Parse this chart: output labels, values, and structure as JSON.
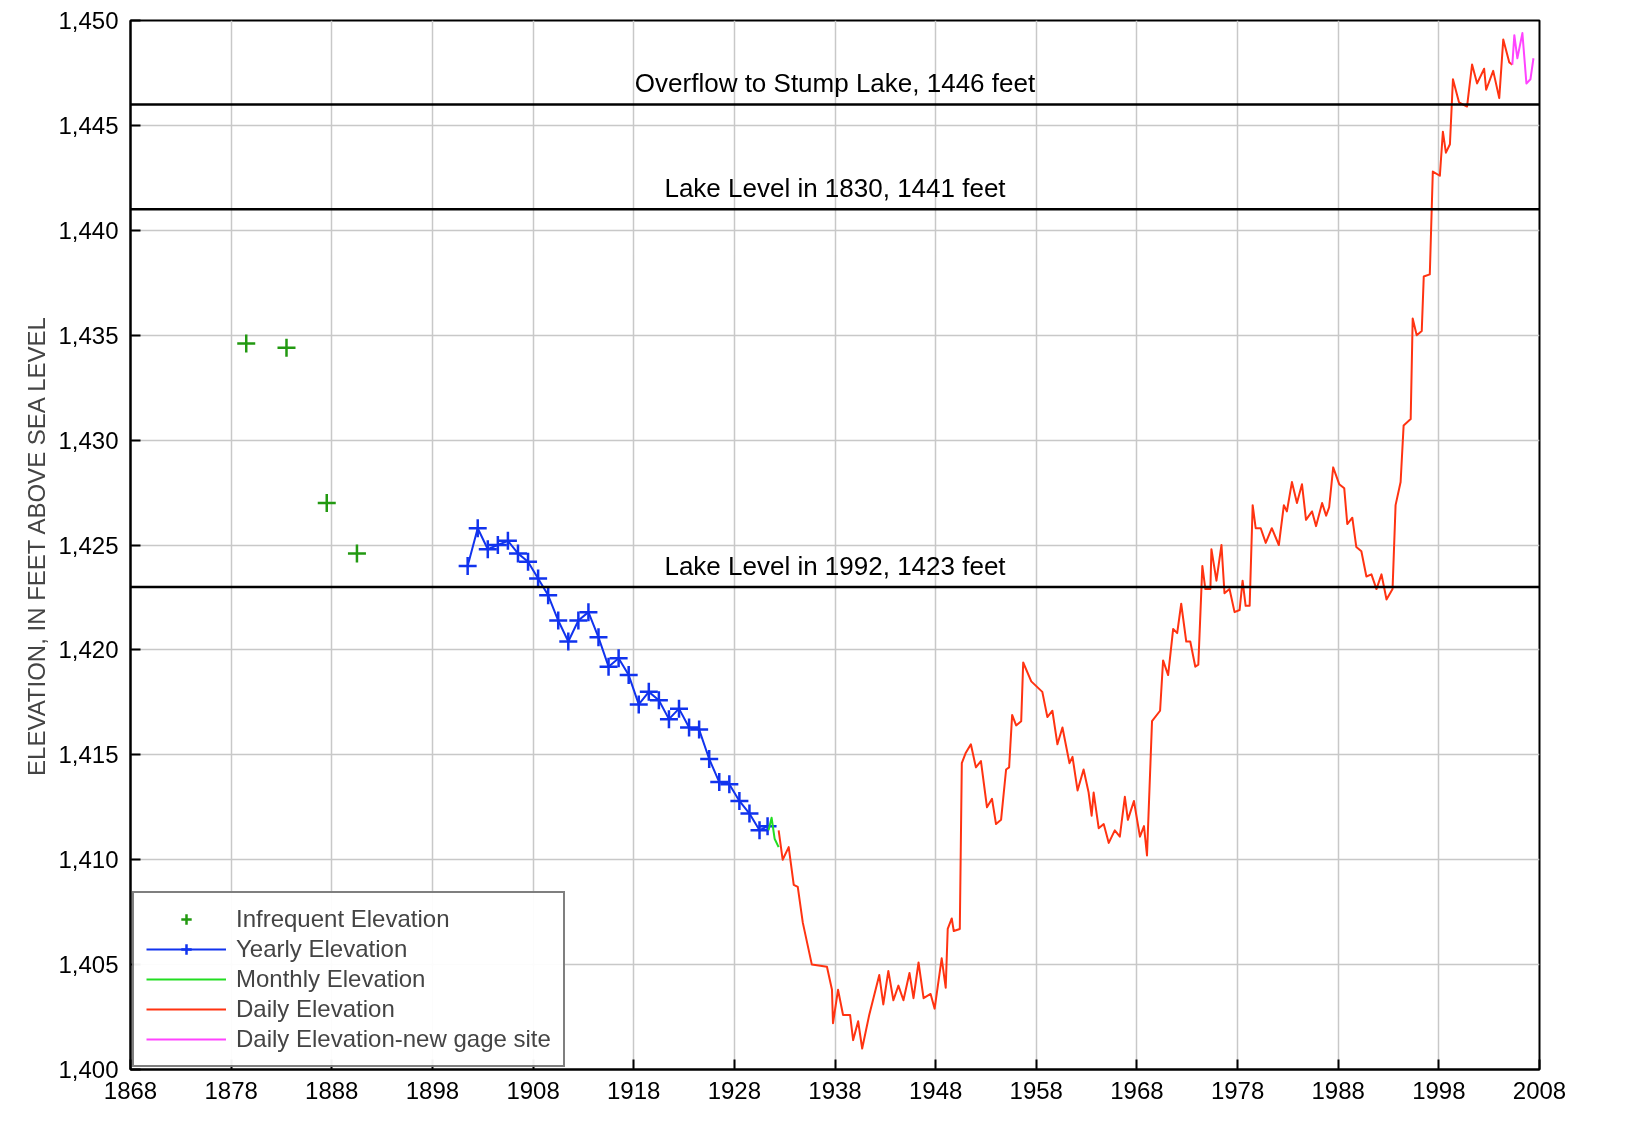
{
  "chart_data": {
    "type": "line",
    "ylabel": "ELEVATION, IN FEET ABOVE SEA LEVEL",
    "xlim": [
      1868,
      2008
    ],
    "ylim": [
      1400,
      1450
    ],
    "xticks": [
      1868,
      1878,
      1888,
      1898,
      1908,
      1918,
      1928,
      1938,
      1948,
      1958,
      1968,
      1978,
      1988,
      1998,
      2008
    ],
    "yticks": [
      {
        "value": 1400,
        "label": "1,400"
      },
      {
        "value": 1405,
        "label": "1,405"
      },
      {
        "value": 1410,
        "label": "1,410"
      },
      {
        "value": 1415,
        "label": "1,415"
      },
      {
        "value": 1420,
        "label": "1,420"
      },
      {
        "value": 1425,
        "label": "1,425"
      },
      {
        "value": 1430,
        "label": "1,430"
      },
      {
        "value": 1435,
        "label": "1,435"
      },
      {
        "value": 1440,
        "label": "1,440"
      },
      {
        "value": 1445,
        "label": "1,445"
      },
      {
        "value": 1450,
        "label": "1,450"
      }
    ],
    "grid": true,
    "legend": "bottom left",
    "ref_lines": [
      {
        "axis": "y",
        "value": 1446,
        "label": "Overflow to Stump Lake, 1446 feet",
        "color": "#000000"
      },
      {
        "axis": "y",
        "value": 1441,
        "label": "Lake Level in 1830, 1441 feet",
        "color": "#000000"
      },
      {
        "axis": "y",
        "value": 1423,
        "label": "Lake Level in 1992, 1423 feet",
        "color": "#000000"
      }
    ],
    "series": [
      {
        "name": "Infrequent Elevation",
        "type": "scatter",
        "marker": "cross",
        "color": "#229911",
        "x": [
          1879.5,
          1883.5,
          1887.5,
          1890.5
        ],
        "values": [
          1434.6,
          1434.4,
          1427.0,
          1424.6
        ]
      },
      {
        "name": "Yearly Elevation",
        "marker": "cross",
        "color": "#1133ee",
        "x": [
          1901.5,
          1902.5,
          1903.5,
          1904.5,
          1905.5,
          1906.5,
          1907.5,
          1908.5,
          1909.5,
          1910.5,
          1911.5,
          1912.5,
          1913.5,
          1914.5,
          1915.5,
          1916.5,
          1917.5,
          1918.5,
          1919.5,
          1920.5,
          1921.5,
          1922.5,
          1923.5,
          1924.5,
          1925.5,
          1926.5,
          1927.5,
          1928.5,
          1929.5,
          1930.5,
          1931.3
        ],
        "values": [
          1424.0,
          1425.8,
          1424.8,
          1425.0,
          1425.2,
          1424.6,
          1424.2,
          1423.4,
          1422.6,
          1421.4,
          1420.4,
          1421.4,
          1421.8,
          1420.6,
          1419.2,
          1419.6,
          1418.8,
          1417.4,
          1418.0,
          1417.6,
          1416.7,
          1417.2,
          1416.3,
          1416.2,
          1414.8,
          1413.7,
          1413.6,
          1412.8,
          1412.2,
          1411.4,
          1411.6
        ]
      },
      {
        "name": "Monthly Elevation",
        "color": "#22dd22",
        "x": [
          1931.4,
          1931.7,
          1932.0,
          1932.4
        ],
        "values": [
          1411.4,
          1412.0,
          1411.0,
          1410.6
        ]
      },
      {
        "name": "Daily Elevation",
        "color": "#ff3311",
        "x": [
          1932.4,
          1932.8,
          1933.4,
          1933.9,
          1934.3,
          1934.8,
          1935.7,
          1937.2,
          1937.7,
          1937.8,
          1938.3,
          1938.8,
          1939.5,
          1939.8,
          1940.3,
          1940.7,
          1941.4,
          1942.4,
          1942.8,
          1943.3,
          1943.8,
          1944.3,
          1944.8,
          1945.4,
          1945.8,
          1946.3,
          1946.8,
          1947.5,
          1947.9,
          1948.6,
          1949.0,
          1949.2,
          1949.6,
          1949.8,
          1950.4,
          1950.6,
          1951.0,
          1951.5,
          1952.0,
          1952.5,
          1953.1,
          1953.6,
          1954.0,
          1954.5,
          1955.0,
          1955.3,
          1955.6,
          1956.0,
          1956.5,
          1956.7,
          1957.5,
          1958.6,
          1959.1,
          1959.6,
          1960.1,
          1960.6,
          1961.3,
          1961.6,
          1962.1,
          1962.7,
          1963.2,
          1963.5,
          1963.7,
          1964.2,
          1964.7,
          1965.2,
          1965.8,
          1966.3,
          1966.8,
          1967.1,
          1967.7,
          1968.3,
          1968.7,
          1969.0,
          1969.5,
          1970.3,
          1970.6,
          1971.1,
          1971.6,
          1972.0,
          1972.4,
          1972.9,
          1973.3,
          1973.8,
          1974.1,
          1974.5,
          1974.8,
          1975.3,
          1975.4,
          1975.9,
          1976.4,
          1976.7,
          1977.2,
          1977.7,
          1978.2,
          1978.5,
          1978.8,
          1979.2,
          1979.5,
          1979.8,
          1980.3,
          1980.8,
          1981.4,
          1982.1,
          1982.6,
          1982.9,
          1983.4,
          1983.9,
          1984.4,
          1984.8,
          1985.4,
          1985.8,
          1986.4,
          1986.8,
          1987.1,
          1987.5,
          1988.1,
          1988.6,
          1988.9,
          1989.4,
          1989.8,
          1990.3,
          1990.8,
          1991.3,
          1991.8,
          1992.3,
          1992.8,
          1993.4,
          1993.7,
          1994.2,
          1994.5,
          1995.2,
          1995.4,
          1995.8,
          1996.3,
          1996.5,
          1997.1,
          1997.4,
          1998.1,
          1998.4,
          1998.7,
          1999.1,
          1999.4,
          2000.0,
          2000.8,
          2001.3,
          2001.8,
          2002.5,
          2002.7,
          2003.4,
          2004.0,
          2004.4,
          2005.0,
          2005.3
        ],
        "values": [
          1411.4,
          1410.0,
          1410.6,
          1408.8,
          1408.7,
          1407.0,
          1405.0,
          1404.9,
          1403.8,
          1402.2,
          1403.8,
          1402.6,
          1402.6,
          1401.4,
          1402.3,
          1401.0,
          1402.6,
          1404.5,
          1403.1,
          1404.7,
          1403.3,
          1404.0,
          1403.3,
          1404.6,
          1403.4,
          1405.1,
          1403.4,
          1403.6,
          1402.9,
          1405.3,
          1403.9,
          1406.7,
          1407.2,
          1406.6,
          1406.7,
          1414.6,
          1415.1,
          1415.5,
          1414.4,
          1414.7,
          1412.5,
          1412.9,
          1411.7,
          1411.9,
          1414.3,
          1414.4,
          1416.9,
          1416.4,
          1416.6,
          1419.4,
          1418.5,
          1418.0,
          1416.8,
          1417.1,
          1415.5,
          1416.3,
          1414.6,
          1414.9,
          1413.3,
          1414.3,
          1413.2,
          1412.1,
          1413.2,
          1411.5,
          1411.7,
          1410.8,
          1411.4,
          1411.1,
          1413.0,
          1411.9,
          1412.8,
          1411.1,
          1411.6,
          1410.2,
          1416.6,
          1417.1,
          1419.5,
          1418.8,
          1421.0,
          1420.8,
          1422.2,
          1420.4,
          1420.4,
          1419.2,
          1419.3,
          1424.0,
          1422.9,
          1422.9,
          1424.8,
          1423.3,
          1425.0,
          1422.7,
          1422.9,
          1421.8,
          1421.9,
          1423.3,
          1422.1,
          1422.1,
          1426.9,
          1425.8,
          1425.8,
          1425.1,
          1425.8,
          1425.0,
          1426.9,
          1426.6,
          1428.0,
          1427.0,
          1427.9,
          1426.2,
          1426.6,
          1425.9,
          1427.0,
          1426.4,
          1426.8,
          1428.7,
          1427.9,
          1427.7,
          1426.0,
          1426.3,
          1424.9,
          1424.7,
          1423.5,
          1423.6,
          1422.9,
          1423.6,
          1422.4,
          1422.9,
          1426.9,
          1428.0,
          1430.7,
          1431.0,
          1435.8,
          1435.0,
          1435.2,
          1437.8,
          1437.9,
          1442.8,
          1442.6,
          1444.7,
          1443.7,
          1444.1,
          1447.2,
          1446.1,
          1445.9,
          1447.9,
          1447.0,
          1447.7,
          1446.7,
          1447.6,
          1446.3,
          1449.1,
          1448.0,
          1447.9
        ]
      },
      {
        "name": "Daily Elevation-new gage site",
        "color": "#ff44ff",
        "x": [
          2005.3,
          2005.5,
          2005.8,
          2006.3,
          2006.7,
          2007.1,
          2007.4
        ],
        "values": [
          1447.9,
          1449.3,
          1448.2,
          1449.4,
          1447.0,
          1447.2,
          1448.2
        ]
      }
    ]
  }
}
